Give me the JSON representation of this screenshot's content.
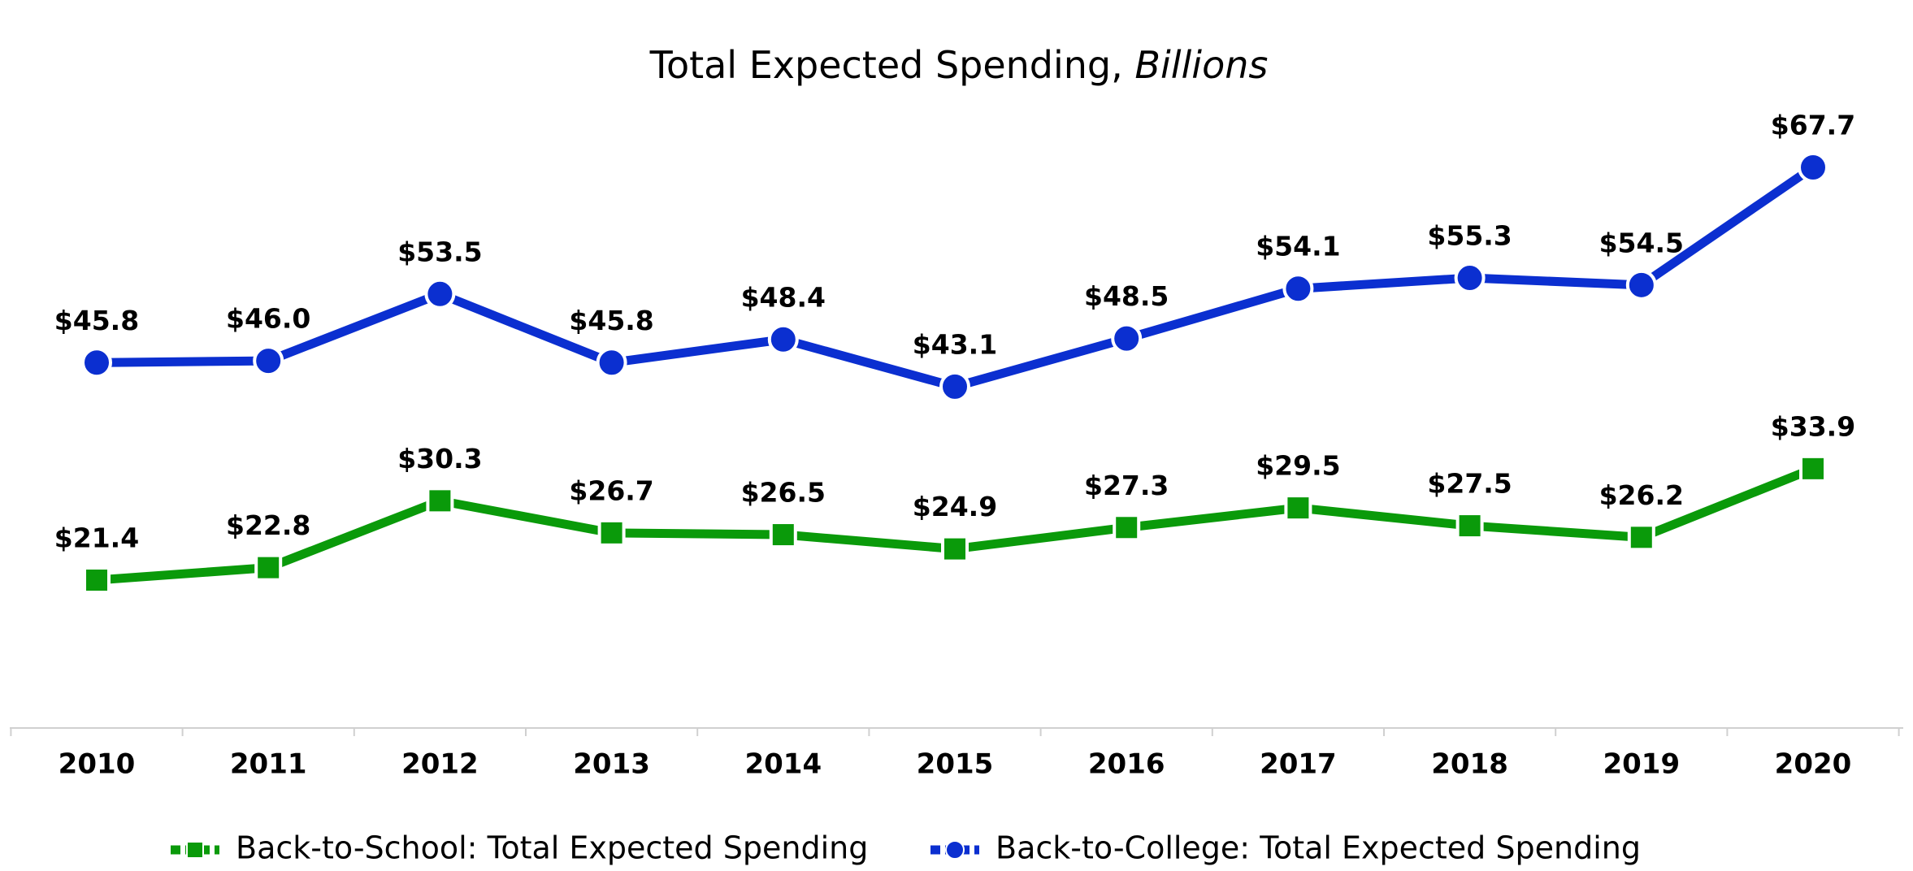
{
  "chart_data": {
    "type": "line",
    "title": "Total Expected Spending,",
    "title_italic": "Billions",
    "categories": [
      "2010",
      "2011",
      "2012",
      "2013",
      "2014",
      "2015",
      "2016",
      "2017",
      "2018",
      "2019",
      "2020"
    ],
    "series": [
      {
        "name": "Back-to-School: Total Expected Spending",
        "color": "#0a9a0a",
        "marker": "square",
        "values": [
          21.4,
          22.8,
          30.3,
          26.7,
          26.5,
          24.9,
          27.3,
          29.5,
          27.5,
          26.2,
          33.9
        ],
        "value_labels": [
          "$21.4",
          "$22.8",
          "$30.3",
          "$26.7",
          "$26.5",
          "$24.9",
          "$27.3",
          "$29.5",
          "$27.5",
          "$26.2",
          "$33.9"
        ]
      },
      {
        "name": "Back-to-College: Total Expected Spending",
        "color": "#0b2fd0",
        "marker": "circle",
        "values": [
          45.8,
          46.0,
          53.5,
          45.8,
          48.4,
          43.1,
          48.5,
          54.1,
          55.3,
          54.5,
          67.7
        ],
        "value_labels": [
          "$45.8",
          "$46.0",
          "$53.5",
          "$45.8",
          "$48.4",
          "$43.1",
          "$48.5",
          "$54.1",
          "$55.3",
          "$54.5",
          "$67.7"
        ]
      }
    ],
    "legend": "bottom"
  }
}
